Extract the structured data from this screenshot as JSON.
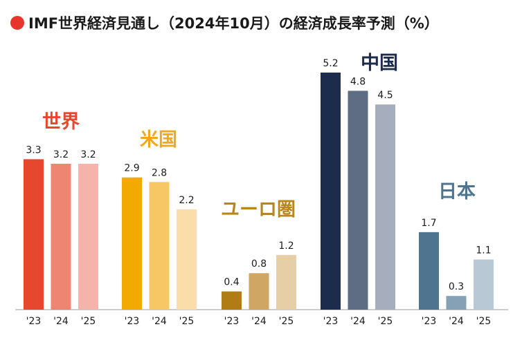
{
  "chart_data": {
    "type": "bar",
    "title": "IMF世界経済見通し（2024年10月）の経済成長率予測（%）",
    "title_bullet_color": "#E8352B",
    "ylim": [
      0,
      5.2
    ],
    "grid": false,
    "groups": [
      {
        "name": "世界",
        "label_color": "#E5482F",
        "categories": [
          "'23",
          "'24",
          "'25"
        ],
        "values": [
          3.3,
          3.2,
          3.2
        ],
        "colors": [
          "#E5482F",
          "#EE8472",
          "#F5B4AB"
        ]
      },
      {
        "name": "米国",
        "label_color": "#F2A81D",
        "categories": [
          "'23",
          "'24",
          "'25"
        ],
        "values": [
          2.9,
          2.8,
          2.2
        ],
        "colors": [
          "#F2A900",
          "#F7C765",
          "#FBDDA9"
        ]
      },
      {
        "name": "ユーロ圏",
        "label_color": "#B8861B",
        "categories": [
          "'23",
          "'24",
          "'25"
        ],
        "values": [
          0.4,
          0.8,
          1.2
        ],
        "colors": [
          "#B07D14",
          "#CFA664",
          "#E6CFA6"
        ]
      },
      {
        "name": "中国",
        "label_color": "#1C2C4C",
        "categories": [
          "'23",
          "'24",
          "'25"
        ],
        "values": [
          5.2,
          4.8,
          4.5
        ],
        "colors": [
          "#1C2C4C",
          "#5E6C84",
          "#A6AEBE"
        ]
      },
      {
        "name": "日本",
        "label_color": "#4E7490",
        "categories": [
          "'23",
          "'24",
          "'25"
        ],
        "values": [
          1.7,
          0.3,
          1.1
        ],
        "colors": [
          "#4E7490",
          "#86A0B5",
          "#B8C8D4"
        ]
      }
    ]
  }
}
